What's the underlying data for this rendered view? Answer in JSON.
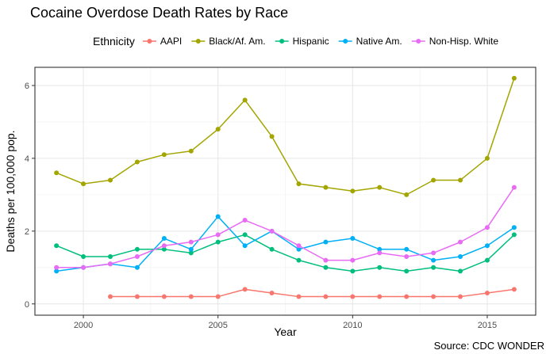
{
  "chart_data": {
    "type": "line",
    "title": "Cocaine Overdose Death Rates by Race",
    "xlabel": "Year",
    "ylabel": "Deaths per 100,000 pop.",
    "caption": "Source: CDC WONDER",
    "legend_title": "Ethnicity",
    "legend_position": "top",
    "xlim": [
      1998.2,
      2016.8
    ],
    "ylim": [
      -0.31,
      6.5
    ],
    "x_ticks": [
      2000,
      2005,
      2010,
      2015
    ],
    "x_tick_labels": [
      "2000",
      "2005",
      "2010",
      "2015"
    ],
    "y_ticks": [
      0,
      2,
      4,
      6
    ],
    "y_tick_labels": [
      "0",
      "2",
      "4",
      "6"
    ],
    "grid": true,
    "series": [
      {
        "name": "AAPI",
        "color": "#F8766D",
        "x": [
          2001,
          2002,
          2003,
          2004,
          2005,
          2006,
          2007,
          2008,
          2009,
          2010,
          2011,
          2012,
          2013,
          2014,
          2015,
          2016
        ],
        "values": [
          0.2,
          0.2,
          0.2,
          0.2,
          0.2,
          0.4,
          0.3,
          0.2,
          0.2,
          0.2,
          0.2,
          0.2,
          0.2,
          0.2,
          0.3,
          0.4
        ]
      },
      {
        "name": "Black/Af. Am.",
        "color": "#A3A500",
        "x": [
          1999,
          2000,
          2001,
          2002,
          2003,
          2004,
          2005,
          2006,
          2007,
          2008,
          2009,
          2010,
          2011,
          2012,
          2013,
          2014,
          2015,
          2016
        ],
        "values": [
          3.6,
          3.3,
          3.4,
          3.9,
          4.1,
          4.2,
          4.8,
          5.6,
          4.6,
          3.3,
          3.2,
          3.1,
          3.2,
          3.0,
          3.4,
          3.4,
          4.0,
          6.2
        ]
      },
      {
        "name": "Hispanic",
        "color": "#00BF7D",
        "x": [
          1999,
          2000,
          2001,
          2002,
          2003,
          2004,
          2005,
          2006,
          2007,
          2008,
          2009,
          2010,
          2011,
          2012,
          2013,
          2014,
          2015,
          2016
        ],
        "values": [
          1.6,
          1.3,
          1.3,
          1.5,
          1.5,
          1.4,
          1.7,
          1.9,
          1.5,
          1.2,
          1.0,
          0.9,
          1.0,
          0.9,
          1.0,
          0.9,
          1.2,
          1.9
        ]
      },
      {
        "name": "Native Am.",
        "color": "#00B0F6",
        "x": [
          1999,
          2000,
          2001,
          2002,
          2003,
          2004,
          2005,
          2006,
          2007,
          2008,
          2009,
          2010,
          2011,
          2012,
          2013,
          2014,
          2015,
          2016
        ],
        "values": [
          0.9,
          1.0,
          1.1,
          1.0,
          1.8,
          1.5,
          2.4,
          1.6,
          2.0,
          1.5,
          1.7,
          1.8,
          1.5,
          1.5,
          1.2,
          1.3,
          1.6,
          2.1
        ]
      },
      {
        "name": "Non-Hisp. White",
        "color": "#E76BF3",
        "x": [
          1999,
          2000,
          2001,
          2002,
          2003,
          2004,
          2005,
          2006,
          2007,
          2008,
          2009,
          2010,
          2011,
          2012,
          2013,
          2014,
          2015,
          2016
        ],
        "values": [
          1.0,
          1.0,
          1.1,
          1.3,
          1.6,
          1.7,
          1.9,
          2.3,
          2.0,
          1.6,
          1.2,
          1.2,
          1.4,
          1.3,
          1.4,
          1.7,
          2.1,
          3.2
        ]
      }
    ]
  }
}
